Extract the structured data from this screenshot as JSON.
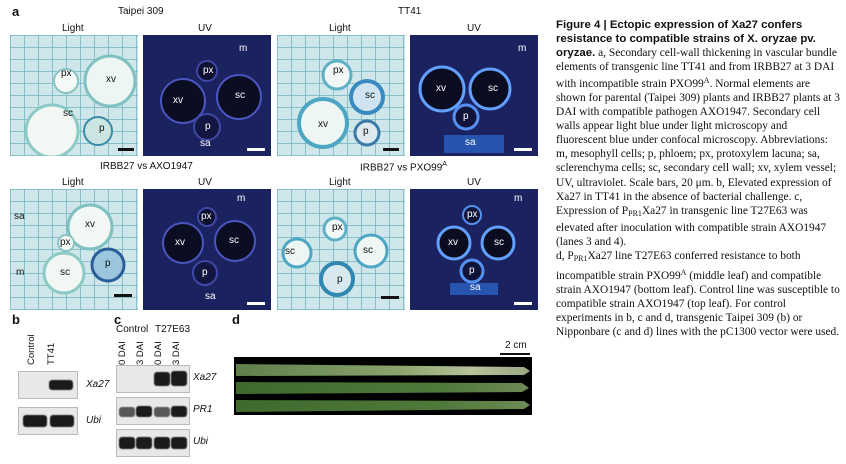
{
  "panel_a": {
    "letter": "a",
    "groups": [
      {
        "title": "Taipei 309",
        "light": "Light",
        "uv": "UV"
      },
      {
        "title": "TT41",
        "light": "Light",
        "uv": "UV"
      },
      {
        "title": "IRBB27 vs AXO1947",
        "light": "Light",
        "uv": "UV"
      },
      {
        "title": "IRBB27 vs PXO99",
        "title_sup": "A",
        "light": "Light",
        "uv": "UV"
      }
    ],
    "labels": {
      "m": "m",
      "px": "px",
      "xv": "xv",
      "sc": "sc",
      "p": "p",
      "sa": "sa"
    }
  },
  "panel_b": {
    "letter": "b",
    "lanes": [
      "Control",
      "TT41"
    ],
    "rows": [
      "Xa27",
      "Ubi"
    ]
  },
  "panel_c": {
    "letter": "c",
    "groups": [
      "Control",
      "T27E63"
    ],
    "lanes": [
      "0 DAI",
      "3 DAI",
      "0 DAI",
      "3 DAI"
    ],
    "rows": [
      "Xa27",
      "PR1",
      "Ubi"
    ]
  },
  "panel_d": {
    "letter": "d",
    "scale": "2 cm"
  },
  "caption": {
    "title": "Figure 4 | Ectopic expression of Xa27 confers resistance to compatible strains of X. oryzae pv. oryzae.",
    "body_a_1": "a, Secondary cell-wall thickening in vascular bundle elements of transgenic line TT41 and from IRBB27 at 3 DAI with incompatible strain PXO99",
    "body_a_sup": "A",
    "body_a_2": ". Normal elements are shown for parental (Taipei 309) plants and IRBB27 plants at 3 DAI with compatible pathogen AXO1947. Secondary cell walls appear light blue under light microscopy and fluorescent blue under confocal microscopy. Abbreviations: m, mesophyll cells; p, phloem; px, protoxylem lacuna; sa, sclerenchyma cells; sc, secondary cell wall; xv, xylem vessel; UV, ultraviolet. Scale bars, 20 μm.",
    "body_b": "b, Elevated expression of Xa27 in TT41 in the absence of bacterial challenge.",
    "body_c_1": "c, Expression of P",
    "body_c_sub": "PR1",
    "body_c_2": "Xa27 in transgenic line T27E63 was elevated after inoculation with compatible strain AXO1947 (lanes 3 and 4).",
    "body_d_1": "d, P",
    "body_d_sub": "PR1",
    "body_d_2": "Xa27 line T27E63 conferred resistance to both incompatible strain PXO99",
    "body_d_sup": "A",
    "body_d_3": " (middle leaf) and compatible strain AXO1947 (bottom leaf). Control line was susceptible to compatible strain AXO1947 (top leaf). For control experiments in b, c and d, transgenic Taipei 309 (b) or Nipponbare (c and d) lines with the pC1300 vector were used."
  }
}
